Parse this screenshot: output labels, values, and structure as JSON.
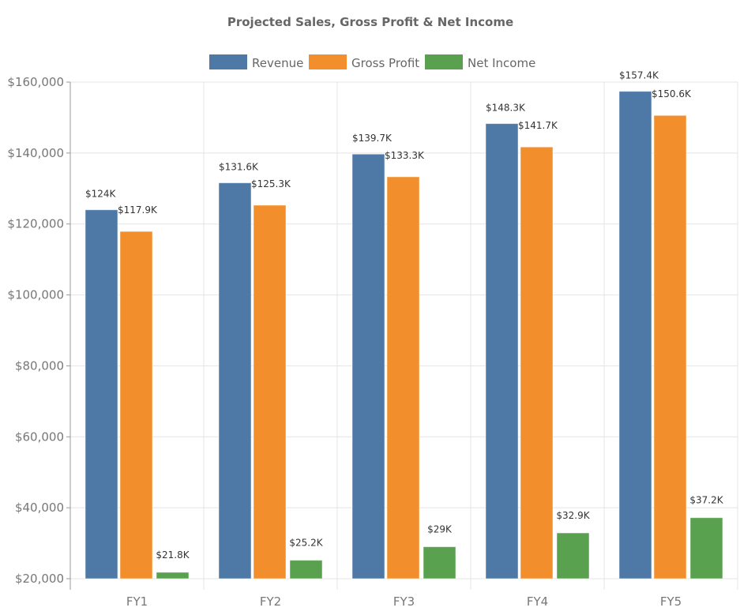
{
  "chart_data": {
    "type": "bar",
    "title": "Projected Sales, Gross Profit & Net Income",
    "categories": [
      "FY1",
      "FY2",
      "FY3",
      "FY4",
      "FY5"
    ],
    "series": [
      {
        "name": "Revenue",
        "color": "#4e79a7",
        "values": [
          124000,
          131600,
          139700,
          148300,
          157400
        ],
        "labels": [
          "$124K",
          "$131.6K",
          "$139.7K",
          "$148.3K",
          "$157.4K"
        ]
      },
      {
        "name": "Gross Profit",
        "color": "#f28e2b",
        "values": [
          117900,
          125300,
          133300,
          141700,
          150600
        ],
        "labels": [
          "$117.9K",
          "$125.3K",
          "$133.3K",
          "$141.7K",
          "$150.6K"
        ]
      },
      {
        "name": "Net Income",
        "color": "#59a14f",
        "values": [
          21800,
          25200,
          29000,
          32900,
          37200
        ],
        "labels": [
          "$21.8K",
          "$25.2K",
          "$29K",
          "$32.9K",
          "$37.2K"
        ]
      }
    ],
    "ylim": [
      20000,
      160000
    ],
    "yticks": [
      20000,
      40000,
      60000,
      80000,
      100000,
      120000,
      140000,
      160000
    ],
    "ytick_labels": [
      "$20,000",
      "$40,000",
      "$60,000",
      "$80,000",
      "$100,000",
      "$120,000",
      "$140,000",
      "$160,000"
    ],
    "grid": true,
    "legend": "top-center"
  }
}
